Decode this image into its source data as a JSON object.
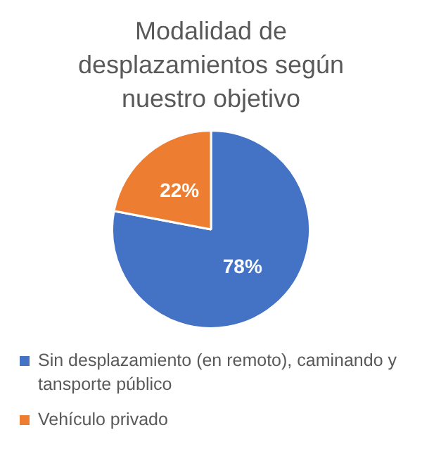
{
  "chart_data": {
    "type": "pie",
    "title": "Modalidad de desplazamientos según nuestro objetivo",
    "categories": [
      "Sin desplazamiento (en remoto), caminando y tansporte público",
      "Vehículo privado"
    ],
    "values": [
      78,
      22
    ],
    "colors": [
      "#4472c4",
      "#ed7d31"
    ],
    "value_labels": [
      "78%",
      "22%"
    ],
    "legend": "bottom"
  }
}
